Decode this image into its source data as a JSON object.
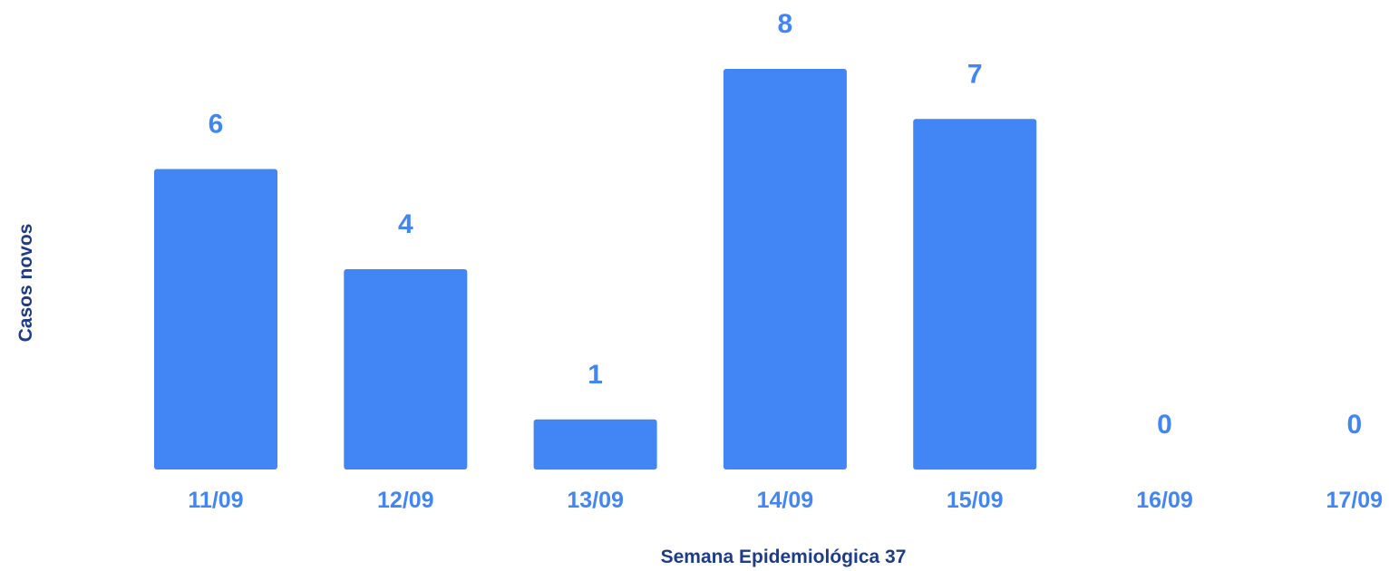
{
  "chart_data": {
    "type": "bar",
    "title": "",
    "xlabel": "Semana Epidemiológica 37",
    "ylabel": "Casos novos",
    "categories": [
      "11/09",
      "12/09",
      "13/09",
      "14/09",
      "15/09",
      "16/09",
      "17/09"
    ],
    "values": [
      6,
      4,
      1,
      8,
      7,
      0,
      0
    ],
    "ylim": [
      0,
      8
    ],
    "grid": false,
    "legend": "none",
    "data_labels": true
  },
  "colors": {
    "bar": "#4285F4",
    "value_label": "#4285F4",
    "tick_label": "#4285F4",
    "axis_title": "#1F3C88"
  }
}
